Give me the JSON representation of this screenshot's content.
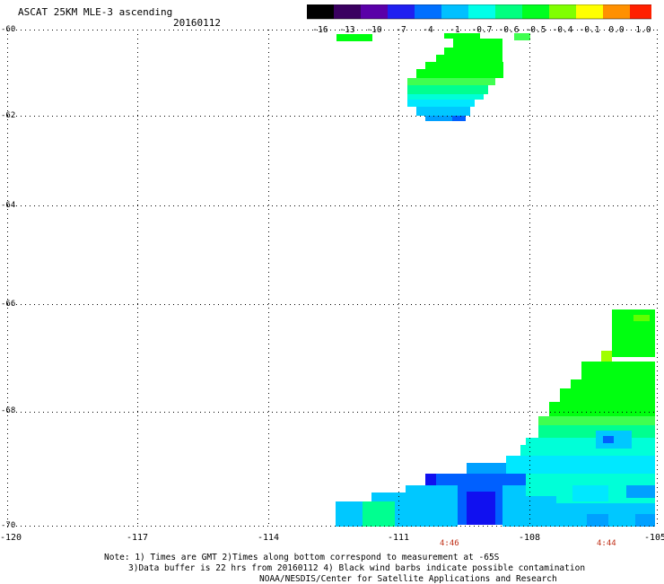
{
  "header": {
    "title": "ASCAT 25KM MLE-3 ascending",
    "date": "20160112"
  },
  "colorbar": {
    "labels": [
      "-16",
      "-13",
      "-10",
      "-7",
      "-4",
      "-1",
      "-0.7",
      "-0.6",
      "-0.5",
      "-0.4",
      "-0.1",
      "0.0",
      "1.0"
    ],
    "colors": [
      "#000000",
      "#3a0060",
      "#5a00a8",
      "#2020f0",
      "#0070ff",
      "#00c0ff",
      "#00ffe8",
      "#00ff80",
      "#00ff20",
      "#80ff00",
      "#ffff00",
      "#ff9000",
      "#ff2000"
    ]
  },
  "map": {
    "y_ticks": [
      "-60",
      "-62",
      "-64",
      "-66",
      "-68",
      "-70"
    ],
    "x_ticks": [
      "-120",
      "-117",
      "-114",
      "-111",
      "-108",
      "-105"
    ],
    "time_labels": [
      "4:46",
      "4:44"
    ],
    "palette": {
      "green": "#00ff10",
      "lightgreen": "#40ff50",
      "mint": "#00ff90",
      "aqua": "#00ffd8",
      "cyan": "#00e8ff",
      "sky": "#00c8ff",
      "azure": "#00a0ff",
      "blue": "#0060ff",
      "deepblue": "#1010f0",
      "yellowgreen": "#a0ff00",
      "lime": "#60ff00"
    }
  },
  "notes": {
    "line1": "Note: 1) Times are GMT 2)Times along bottom correspond to measurement at -65S",
    "line2": "3)Data buffer is 22 hrs from 20160112 4) Black wind barbs indicate possible contamination",
    "line3": "NOAA/NESDIS/Center for Satellite Applications and Research"
  }
}
